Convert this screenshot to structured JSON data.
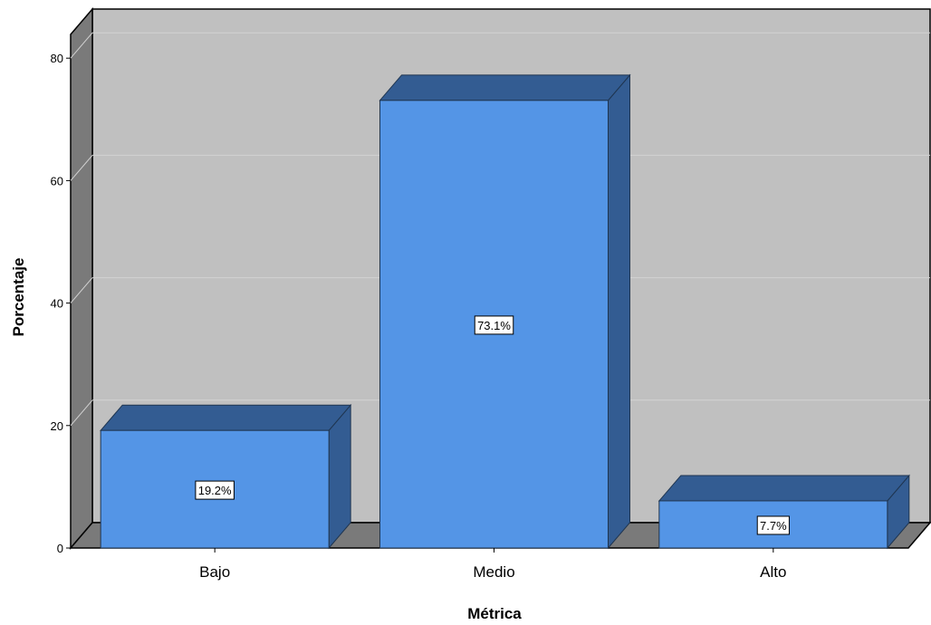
{
  "chart_data": {
    "type": "bar",
    "categories": [
      "Bajo",
      "Medio",
      "Alto"
    ],
    "values": [
      19.2,
      73.1,
      7.7
    ],
    "data_labels": [
      "19.2%",
      "73.1%",
      "7.7%"
    ],
    "xlabel": "Métrica",
    "ylabel": "Porcentaje",
    "ylim": [
      0,
      80
    ],
    "yticks": [
      0,
      20,
      40,
      60,
      80
    ],
    "grid": true,
    "style": "3d",
    "colors": {
      "bar_front": "#5495e6",
      "bar_top": "#335c92",
      "bar_side": "#335c92",
      "back_wall": "#c0c0c0",
      "side_wall": "#7a7a7a",
      "floor": "#7a7a7a",
      "gridline": "#d3d3d3"
    }
  }
}
